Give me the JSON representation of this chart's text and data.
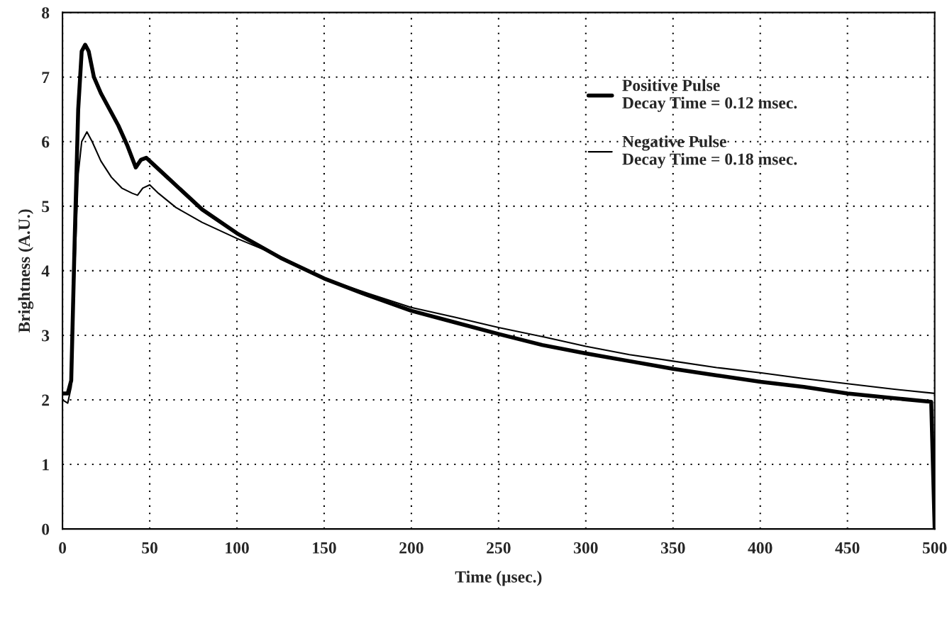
{
  "chart_data": {
    "type": "line",
    "xlabel": "Time (μsec.)",
    "ylabel": "Brightness (A.U.)",
    "xlim": [
      0,
      500
    ],
    "xticks": [
      0,
      50,
      100,
      150,
      200,
      250,
      300,
      350,
      400,
      450,
      500
    ],
    "ylim": [
      0,
      8
    ],
    "yticks": [
      0,
      1,
      2,
      3,
      4,
      5,
      6,
      7,
      8
    ],
    "grid": true,
    "legend": "top right",
    "marker": "none",
    "series": [
      {
        "name": "Positive Pulse\nDecay Time = 0.12 msec.",
        "color": "#000000",
        "x": [
          0,
          3,
          5,
          7,
          9,
          11,
          13,
          15,
          18,
          22,
          27,
          32,
          37,
          42,
          45,
          48,
          52,
          60,
          70,
          80,
          100,
          125,
          150,
          175,
          200,
          225,
          250,
          275,
          300,
          325,
          350,
          375,
          400,
          425,
          450,
          475,
          498,
          500
        ],
        "values": [
          2.1,
          2.1,
          2.3,
          4.5,
          6.5,
          7.4,
          7.5,
          7.4,
          7.0,
          6.75,
          6.5,
          6.25,
          5.95,
          5.6,
          5.72,
          5.75,
          5.65,
          5.45,
          5.2,
          4.95,
          4.58,
          4.2,
          3.88,
          3.62,
          3.38,
          3.2,
          3.02,
          2.85,
          2.72,
          2.6,
          2.48,
          2.38,
          2.28,
          2.2,
          2.1,
          2.03,
          1.97,
          0
        ]
      },
      {
        "name": "Negative Pulse\nDecay Time = 0.18 msec.",
        "color": "#000000",
        "x": [
          0,
          3,
          5,
          7,
          9,
          11,
          14,
          17,
          22,
          28,
          34,
          40,
          43,
          46,
          50,
          55,
          65,
          80,
          100,
          125,
          150,
          175,
          200,
          225,
          250,
          275,
          300,
          325,
          350,
          375,
          400,
          425,
          450,
          475,
          500
        ],
        "values": [
          2.0,
          1.95,
          2.2,
          4.0,
          5.5,
          6.0,
          6.15,
          6.0,
          5.7,
          5.45,
          5.28,
          5.2,
          5.17,
          5.28,
          5.33,
          5.2,
          4.98,
          4.75,
          4.5,
          4.22,
          3.88,
          3.65,
          3.43,
          3.28,
          3.12,
          2.98,
          2.83,
          2.7,
          2.6,
          2.5,
          2.42,
          2.33,
          2.25,
          2.17,
          2.1
        ]
      }
    ]
  }
}
